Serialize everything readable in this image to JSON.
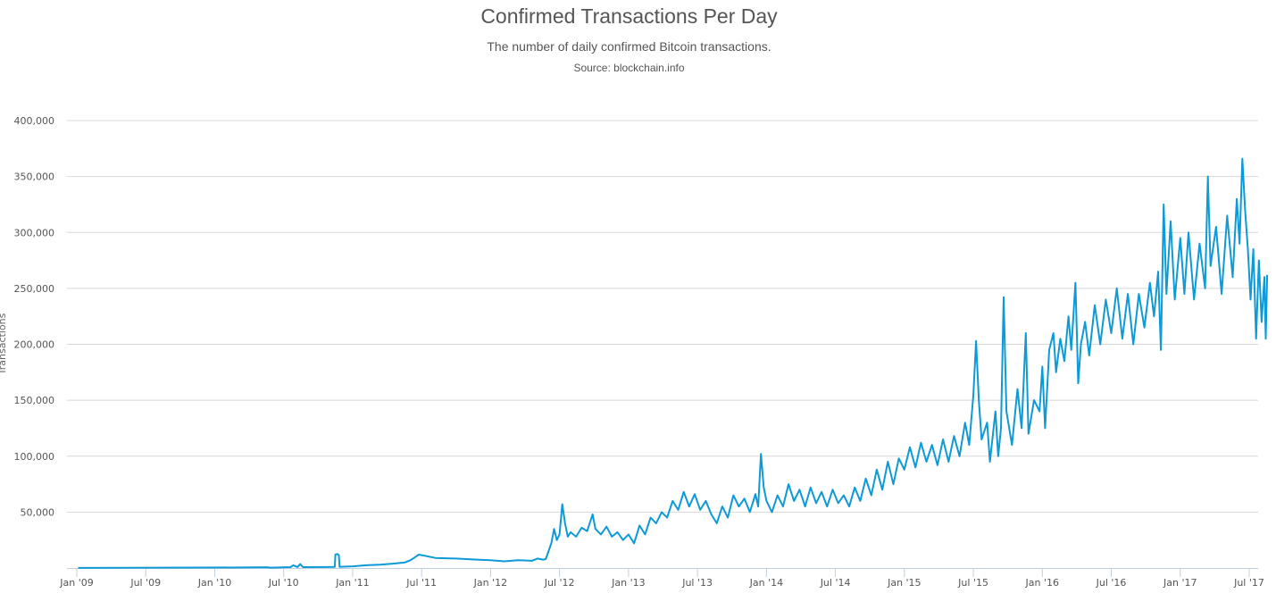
{
  "chart_data": {
    "type": "line",
    "title": "Confirmed Transactions Per Day",
    "subtitle": "The number of daily confirmed Bitcoin transactions.",
    "source": "Source: blockchain.info",
    "xlabel": "",
    "ylabel": "Transactions",
    "ylim": [
      0,
      400000
    ],
    "xlim": [
      "2009-01-03",
      "2017-07-20"
    ],
    "grid": true,
    "legend": "none",
    "line_color": "#0d9ad6",
    "y_ticks": [
      {
        "value": 50000,
        "label": "50,000"
      },
      {
        "value": 100000,
        "label": "100,000"
      },
      {
        "value": 150000,
        "label": "150,000"
      },
      {
        "value": 200000,
        "label": "200,000"
      },
      {
        "value": 250000,
        "label": "250,000"
      },
      {
        "value": 300000,
        "label": "300,000"
      },
      {
        "value": 350000,
        "label": "350,000"
      },
      {
        "value": 400000,
        "label": "400,000"
      }
    ],
    "x_ticks": [
      {
        "t": 2009.0,
        "label": "Jan '09"
      },
      {
        "t": 2009.5,
        "label": "Jul '09"
      },
      {
        "t": 2010.0,
        "label": "Jan '10"
      },
      {
        "t": 2010.5,
        "label": "Jul '10"
      },
      {
        "t": 2011.0,
        "label": "Jan '11"
      },
      {
        "t": 2011.5,
        "label": "Jul '11"
      },
      {
        "t": 2012.0,
        "label": "Jan '12"
      },
      {
        "t": 2012.5,
        "label": "Jul '12"
      },
      {
        "t": 2013.0,
        "label": "Jan '13"
      },
      {
        "t": 2013.5,
        "label": "Jul '13"
      },
      {
        "t": 2014.0,
        "label": "Jan '14"
      },
      {
        "t": 2014.5,
        "label": "Jul '14"
      },
      {
        "t": 2015.0,
        "label": "Jan '15"
      },
      {
        "t": 2015.5,
        "label": "Jul '15"
      },
      {
        "t": 2016.0,
        "label": "Jan '16"
      },
      {
        "t": 2016.5,
        "label": "Jul '16"
      },
      {
        "t": 2017.0,
        "label": "Jan '17"
      },
      {
        "t": 2017.5,
        "label": "Jul '17"
      }
    ],
    "series": [
      {
        "name": "Confirmed Transactions Per Day",
        "points": [
          [
            2009.01,
            100
          ],
          [
            2009.3,
            200
          ],
          [
            2009.6,
            300
          ],
          [
            2009.9,
            400
          ],
          [
            2010.2,
            500
          ],
          [
            2010.38,
            700
          ],
          [
            2010.4,
            300
          ],
          [
            2010.55,
            800
          ],
          [
            2010.57,
            2500
          ],
          [
            2010.6,
            900
          ],
          [
            2010.62,
            3500
          ],
          [
            2010.64,
            800
          ],
          [
            2010.8,
            900
          ],
          [
            2010.87,
            1000
          ],
          [
            2010.875,
            12000
          ],
          [
            2010.89,
            12500
          ],
          [
            2010.9,
            11500
          ],
          [
            2010.905,
            1000
          ],
          [
            2011.0,
            1500
          ],
          [
            2011.1,
            2500
          ],
          [
            2011.2,
            3000
          ],
          [
            2011.3,
            4000
          ],
          [
            2011.38,
            5000
          ],
          [
            2011.42,
            7000
          ],
          [
            2011.45,
            9500
          ],
          [
            2011.48,
            12000
          ],
          [
            2011.52,
            11000
          ],
          [
            2011.6,
            9000
          ],
          [
            2011.75,
            8500
          ],
          [
            2011.9,
            7500
          ],
          [
            2012.0,
            7000
          ],
          [
            2012.1,
            6000
          ],
          [
            2012.2,
            7000
          ],
          [
            2012.3,
            6500
          ],
          [
            2012.34,
            8500
          ],
          [
            2012.38,
            7500
          ],
          [
            2012.4,
            8000
          ],
          [
            2012.42,
            15000
          ],
          [
            2012.44,
            22000
          ],
          [
            2012.46,
            35000
          ],
          [
            2012.48,
            25000
          ],
          [
            2012.5,
            30000
          ],
          [
            2012.52,
            57000
          ],
          [
            2012.54,
            40000
          ],
          [
            2012.56,
            28000
          ],
          [
            2012.58,
            32000
          ],
          [
            2012.62,
            28000
          ],
          [
            2012.66,
            36000
          ],
          [
            2012.7,
            33000
          ],
          [
            2012.74,
            48000
          ],
          [
            2012.76,
            35000
          ],
          [
            2012.8,
            30000
          ],
          [
            2012.84,
            37000
          ],
          [
            2012.88,
            28000
          ],
          [
            2012.92,
            32000
          ],
          [
            2012.96,
            25000
          ],
          [
            2013.0,
            30000
          ],
          [
            2013.04,
            22000
          ],
          [
            2013.08,
            38000
          ],
          [
            2013.12,
            30000
          ],
          [
            2013.16,
            45000
          ],
          [
            2013.2,
            40000
          ],
          [
            2013.24,
            50000
          ],
          [
            2013.28,
            45000
          ],
          [
            2013.32,
            60000
          ],
          [
            2013.36,
            52000
          ],
          [
            2013.4,
            68000
          ],
          [
            2013.44,
            55000
          ],
          [
            2013.48,
            66000
          ],
          [
            2013.52,
            52000
          ],
          [
            2013.56,
            60000
          ],
          [
            2013.6,
            48000
          ],
          [
            2013.64,
            40000
          ],
          [
            2013.68,
            55000
          ],
          [
            2013.72,
            45000
          ],
          [
            2013.76,
            65000
          ],
          [
            2013.8,
            55000
          ],
          [
            2013.84,
            62000
          ],
          [
            2013.88,
            50000
          ],
          [
            2013.92,
            66000
          ],
          [
            2013.94,
            55000
          ],
          [
            2013.96,
            102000
          ],
          [
            2013.98,
            72000
          ],
          [
            2014.0,
            60000
          ],
          [
            2014.04,
            50000
          ],
          [
            2014.08,
            65000
          ],
          [
            2014.12,
            55000
          ],
          [
            2014.16,
            75000
          ],
          [
            2014.2,
            60000
          ],
          [
            2014.24,
            70000
          ],
          [
            2014.28,
            55000
          ],
          [
            2014.32,
            72000
          ],
          [
            2014.36,
            58000
          ],
          [
            2014.4,
            68000
          ],
          [
            2014.44,
            55000
          ],
          [
            2014.48,
            70000
          ],
          [
            2014.52,
            58000
          ],
          [
            2014.56,
            65000
          ],
          [
            2014.6,
            55000
          ],
          [
            2014.64,
            72000
          ],
          [
            2014.68,
            60000
          ],
          [
            2014.72,
            80000
          ],
          [
            2014.76,
            65000
          ],
          [
            2014.8,
            88000
          ],
          [
            2014.84,
            70000
          ],
          [
            2014.88,
            95000
          ],
          [
            2014.92,
            75000
          ],
          [
            2014.96,
            98000
          ],
          [
            2015.0,
            88000
          ],
          [
            2015.04,
            108000
          ],
          [
            2015.08,
            90000
          ],
          [
            2015.12,
            112000
          ],
          [
            2015.16,
            95000
          ],
          [
            2015.2,
            110000
          ],
          [
            2015.24,
            92000
          ],
          [
            2015.28,
            115000
          ],
          [
            2015.32,
            95000
          ],
          [
            2015.36,
            118000
          ],
          [
            2015.4,
            100000
          ],
          [
            2015.44,
            130000
          ],
          [
            2015.47,
            110000
          ],
          [
            2015.5,
            155000
          ],
          [
            2015.52,
            203000
          ],
          [
            2015.54,
            150000
          ],
          [
            2015.56,
            115000
          ],
          [
            2015.6,
            130000
          ],
          [
            2015.62,
            95000
          ],
          [
            2015.66,
            140000
          ],
          [
            2015.68,
            100000
          ],
          [
            2015.7,
            125000
          ],
          [
            2015.72,
            242000
          ],
          [
            2015.74,
            140000
          ],
          [
            2015.78,
            110000
          ],
          [
            2015.82,
            160000
          ],
          [
            2015.85,
            125000
          ],
          [
            2015.88,
            210000
          ],
          [
            2015.9,
            120000
          ],
          [
            2015.94,
            150000
          ],
          [
            2015.98,
            140000
          ],
          [
            2016.0,
            180000
          ],
          [
            2016.02,
            125000
          ],
          [
            2016.05,
            195000
          ],
          [
            2016.08,
            210000
          ],
          [
            2016.1,
            175000
          ],
          [
            2016.13,
            205000
          ],
          [
            2016.16,
            185000
          ],
          [
            2016.19,
            225000
          ],
          [
            2016.21,
            195000
          ],
          [
            2016.24,
            255000
          ],
          [
            2016.26,
            165000
          ],
          [
            2016.28,
            200000
          ],
          [
            2016.31,
            220000
          ],
          [
            2016.34,
            190000
          ],
          [
            2016.38,
            235000
          ],
          [
            2016.42,
            200000
          ],
          [
            2016.46,
            240000
          ],
          [
            2016.5,
            210000
          ],
          [
            2016.54,
            250000
          ],
          [
            2016.58,
            205000
          ],
          [
            2016.62,
            245000
          ],
          [
            2016.66,
            200000
          ],
          [
            2016.7,
            245000
          ],
          [
            2016.74,
            215000
          ],
          [
            2016.78,
            255000
          ],
          [
            2016.81,
            225000
          ],
          [
            2016.84,
            265000
          ],
          [
            2016.86,
            195000
          ],
          [
            2016.88,
            325000
          ],
          [
            2016.9,
            245000
          ],
          [
            2016.93,
            310000
          ],
          [
            2016.96,
            240000
          ],
          [
            2017.0,
            295000
          ],
          [
            2017.03,
            245000
          ],
          [
            2017.06,
            300000
          ],
          [
            2017.1,
            240000
          ],
          [
            2017.14,
            290000
          ],
          [
            2017.18,
            250000
          ],
          [
            2017.2,
            350000
          ],
          [
            2017.22,
            270000
          ],
          [
            2017.26,
            305000
          ],
          [
            2017.3,
            245000
          ],
          [
            2017.34,
            315000
          ],
          [
            2017.38,
            260000
          ],
          [
            2017.41,
            330000
          ],
          [
            2017.43,
            290000
          ],
          [
            2017.45,
            366000
          ],
          [
            2017.47,
            320000
          ],
          [
            2017.49,
            285000
          ],
          [
            2017.51,
            240000
          ],
          [
            2017.53,
            285000
          ],
          [
            2017.55,
            205000
          ],
          [
            2017.57,
            275000
          ],
          [
            2017.59,
            220000
          ],
          [
            2017.61,
            260000
          ],
          [
            2017.62,
            205000
          ],
          [
            2017.63,
            262000
          ]
        ]
      }
    ]
  }
}
